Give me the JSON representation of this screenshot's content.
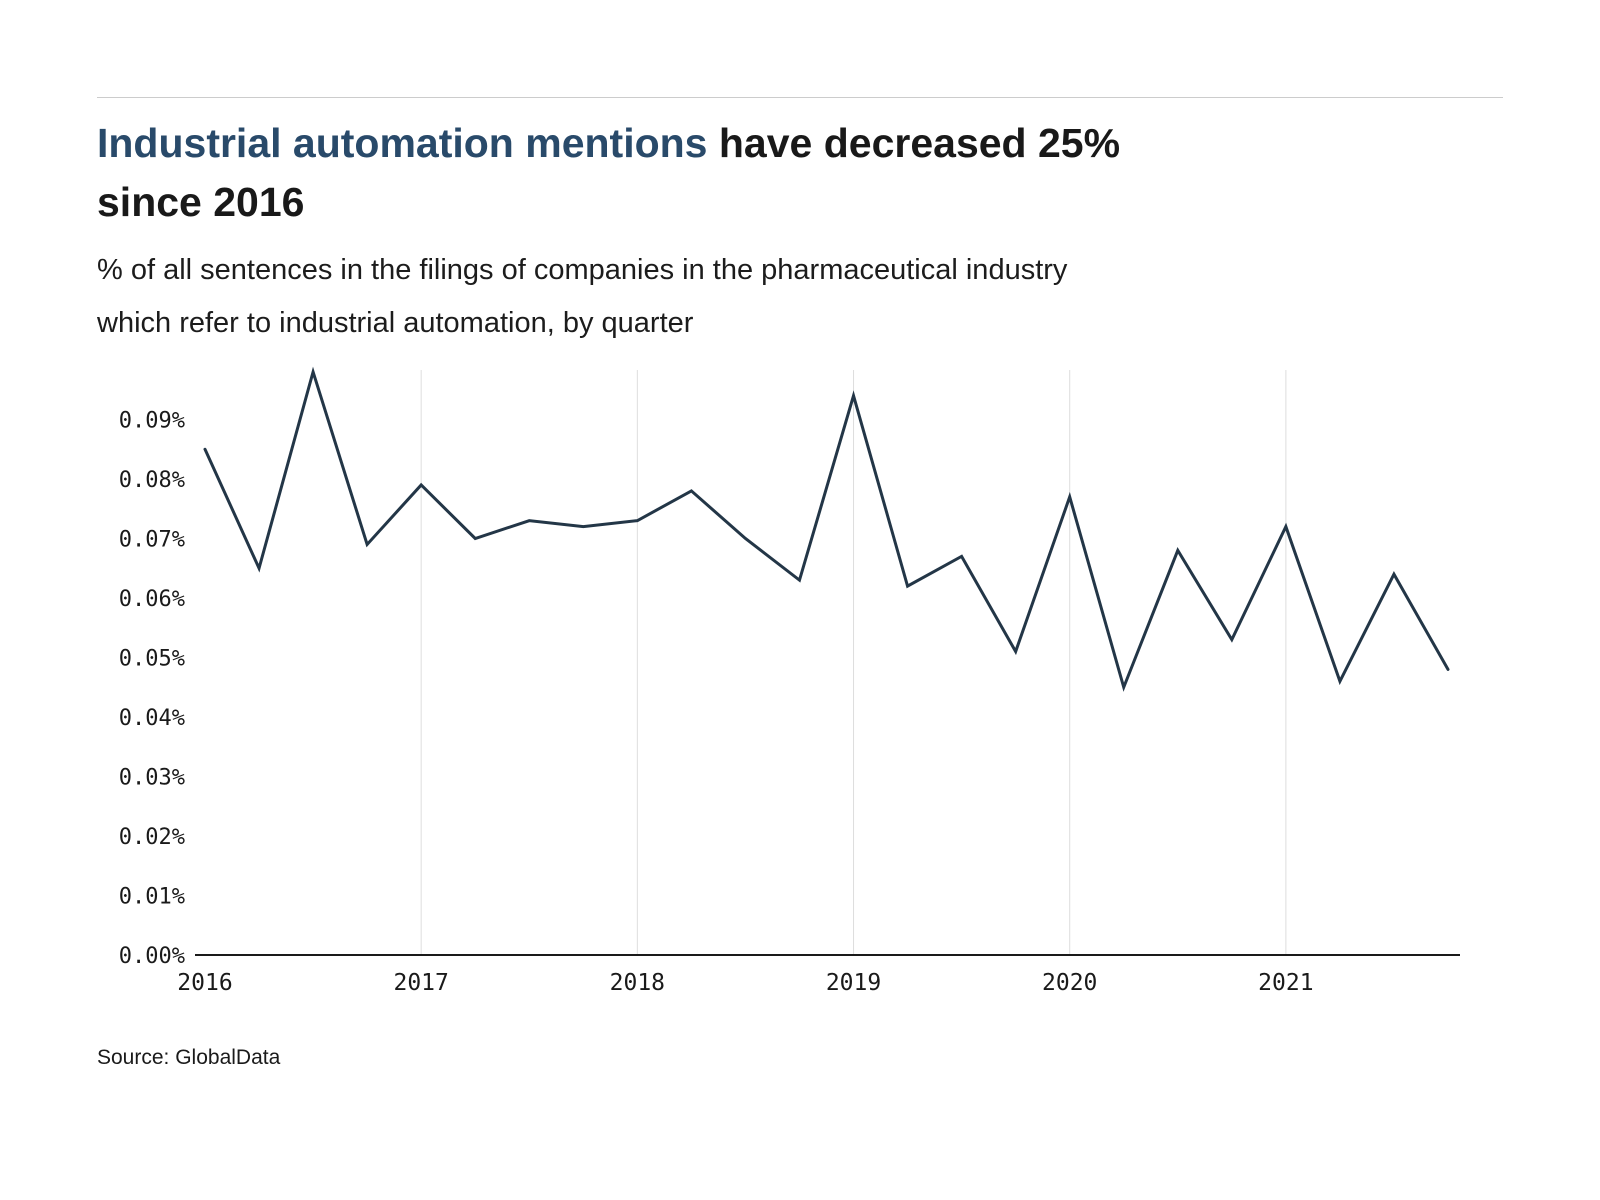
{
  "header": {
    "title_highlight": "Industrial automation mentions",
    "title_rest_line1": "have decreased 25%",
    "title_line2": "since 2016",
    "subtitle_line1": "% of all sentences in the filings of companies in the pharmaceutical industry",
    "subtitle_line2": "which refer to industrial automation, by quarter"
  },
  "footer": {
    "source": "Source: GlobalData"
  },
  "chart_data": {
    "type": "line",
    "title": "Industrial automation mentions have decreased 25% since 2016",
    "subtitle": "% of all sentences in the filings of companies in the pharmaceutical industry which refer to industrial automation, by quarter",
    "x_labels": [
      "2016",
      "2017",
      "2018",
      "2019",
      "2020",
      "2021"
    ],
    "year_tick_indices": [
      0,
      4,
      8,
      12,
      16,
      20
    ],
    "quarters": [
      "2016 Q1",
      "2016 Q2",
      "2016 Q3",
      "2016 Q4",
      "2017 Q1",
      "2017 Q2",
      "2017 Q3",
      "2017 Q4",
      "2018 Q1",
      "2018 Q2",
      "2018 Q3",
      "2018 Q4",
      "2019 Q1",
      "2019 Q2",
      "2019 Q3",
      "2019 Q4",
      "2020 Q1",
      "2020 Q2",
      "2020 Q3",
      "2020 Q4",
      "2021 Q1",
      "2021 Q2",
      "2021 Q3",
      "2021 Q4"
    ],
    "values": [
      0.085,
      0.065,
      0.098,
      0.069,
      0.079,
      0.07,
      0.073,
      0.072,
      0.073,
      0.078,
      0.07,
      0.063,
      0.094,
      0.062,
      0.067,
      0.051,
      0.077,
      0.045,
      0.068,
      0.053,
      0.072,
      0.046,
      0.064,
      0.048
    ],
    "ylim": [
      0,
      0.1
    ],
    "y_ticks": [
      0,
      0.01,
      0.02,
      0.03,
      0.04,
      0.05,
      0.06,
      0.07,
      0.08,
      0.09
    ],
    "y_tick_suffix": "%",
    "xlabel": "",
    "ylabel": "",
    "legend": "none",
    "grid": "vertical-years",
    "line_color": "#233647",
    "grid_color": "#dedede",
    "axis_color": "#1a1a1a"
  }
}
